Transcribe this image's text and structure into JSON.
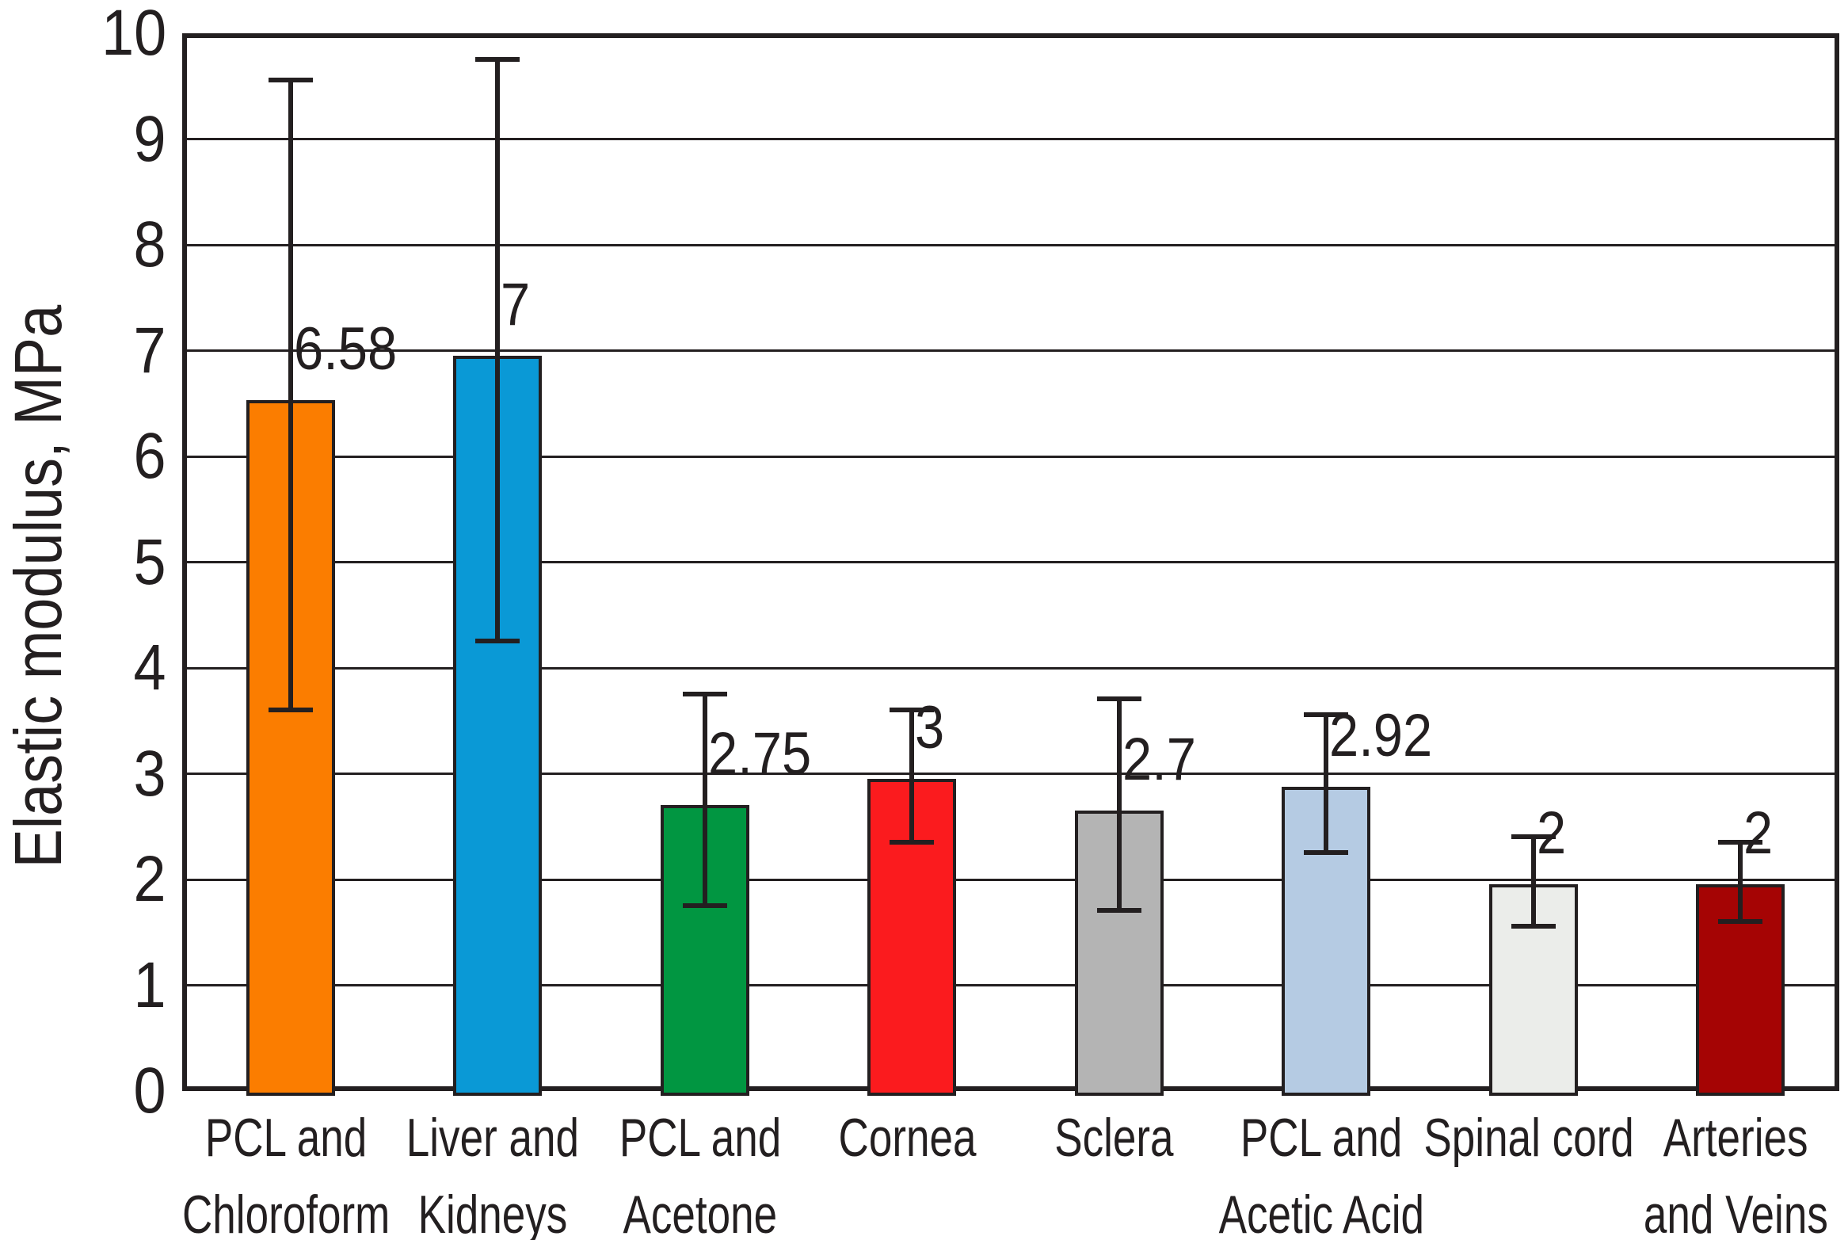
{
  "colors": {
    "axis": "#231F20",
    "grid": "#231F20",
    "background": "#FFFFFF",
    "text": "#231F20"
  },
  "chart_data": {
    "type": "bar",
    "title": "",
    "xlabel": "",
    "ylabel": "Elastic modulus, MPa",
    "ylim": [
      0,
      10
    ],
    "yticks": [
      0,
      1,
      2,
      3,
      4,
      5,
      6,
      7,
      8,
      9,
      10
    ],
    "grid": "horizontal",
    "legend": "none",
    "categories": [
      "PCL and Chloroform",
      "Liver and Kidneys",
      "PCL and Acetone",
      "Cornea",
      "Sclera",
      "PCL and Acetic Acid",
      "Spinal cord",
      "Arteries and Veins"
    ],
    "category_lines": [
      [
        "PCL and",
        "Chloroform"
      ],
      [
        "Liver and",
        "Kidneys"
      ],
      [
        "PCL and",
        "Acetone"
      ],
      [
        "Cornea"
      ],
      [
        "Sclera"
      ],
      [
        "PCL and",
        "Acetic Acid"
      ],
      [
        "Spinal cord"
      ],
      [
        "Arteries",
        "and Veins"
      ]
    ],
    "values": [
      6.58,
      7,
      2.75,
      3,
      2.7,
      2.92,
      2,
      2
    ],
    "value_labels": [
      "6.58",
      "7",
      "2.75",
      "3",
      "2.7",
      "2.92",
      "2",
      "2"
    ],
    "bar_colors": [
      "#FB7D00",
      "#0A99D6",
      "#019641",
      "#FB1B1E",
      "#B4B4B4",
      "#B5CBE3",
      "#EBEDEA",
      "#A50404"
    ],
    "error_bar_low": [
      3.65,
      4.3,
      1.8,
      2.4,
      1.75,
      2.3,
      1.6,
      1.65
    ],
    "error_bar_high": [
      9.6,
      9.8,
      3.8,
      3.65,
      3.75,
      3.6,
      2.45,
      2.4
    ]
  }
}
